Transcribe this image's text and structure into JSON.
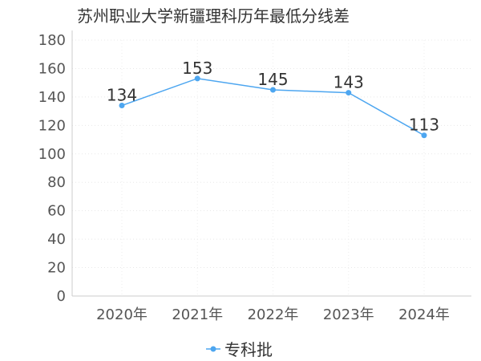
{
  "chart_data": {
    "type": "line",
    "title": "苏州职业大学新疆理科历年最低分线差",
    "categories": [
      "2020年",
      "2021年",
      "2022年",
      "2023年",
      "2024年"
    ],
    "series": [
      {
        "name": "专科批",
        "values": [
          134,
          153,
          145,
          143,
          113
        ],
        "color": "#4da6f0"
      }
    ],
    "ylim": [
      0,
      180
    ],
    "yticks": [
      0,
      20,
      40,
      60,
      80,
      100,
      120,
      140,
      160,
      180
    ],
    "grid": true,
    "legend_position": "bottom-center",
    "xlabel": "",
    "ylabel": ""
  }
}
